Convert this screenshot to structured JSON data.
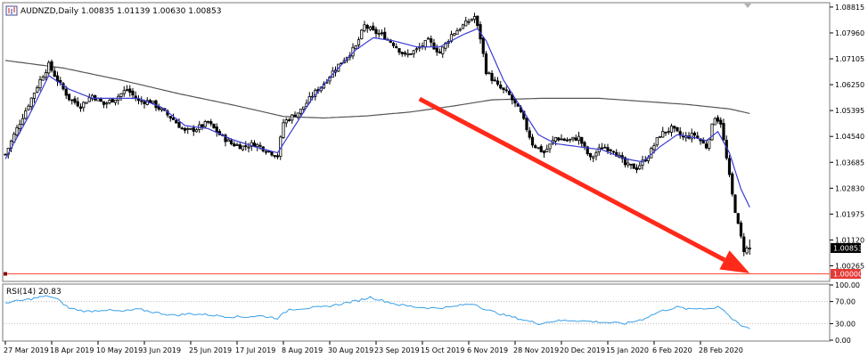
{
  "chart_title": "AUDNZD,Daily  1.00835 1.01139 1.00630 1.00853",
  "rsi_title": "RSI(14) 20.83",
  "colors": {
    "candle": "#000000",
    "ma_fast": "#3b3bd6",
    "ma_slow": "#555555",
    "arrow": "#ff2a1a",
    "hline": "#ff4a3a",
    "rsi": "#3aa0e8",
    "level_badge_bg": "#e53935",
    "price_badge_bg": "#000000"
  },
  "icons": {
    "symbol_icon": "chart-window-icon"
  },
  "chart_data": [
    {
      "type": "candlestick",
      "title": "AUDNZD,Daily  1.00835 1.01139 1.00630 1.00853",
      "symbol": "AUDNZD",
      "timeframe": "Daily",
      "last_bar": {
        "open": 1.00835,
        "high": 1.01139,
        "low": 1.0063,
        "close": 1.00853
      },
      "current_price_label": "1.00853",
      "horizontal_level": {
        "value": 1.0,
        "label": "1.00000"
      },
      "ylim": [
        0.9978,
        1.0893
      ],
      "y_ticks": [
        "1.08815",
        "1.07960",
        "1.07105",
        "1.06250",
        "1.05395",
        "1.04540",
        "1.03685",
        "1.02830",
        "1.01975",
        "1.01120",
        "1.00265"
      ],
      "x_ticks": [
        "27 Mar 2019",
        "18 Apr 2019",
        "10 May 2019",
        "3 Jun 2019",
        "25 Jun 2019",
        "17 Jul 2019",
        "8 Aug 2019",
        "30 Aug 2019",
        "23 Sep 2019",
        "15 Oct 2019",
        "6 Nov 2019",
        "28 Nov 2019",
        "20 Dec 2019",
        "15 Jan 2020",
        "6 Feb 2020",
        "28 Feb 2020"
      ],
      "x_ticks_bar_index": [
        0,
        16,
        32,
        48,
        64,
        80,
        96,
        112,
        128,
        144,
        160,
        176,
        192,
        208,
        224,
        240
      ],
      "close_series_anchors": [
        [
          0,
          1.0395
        ],
        [
          4,
          1.048
        ],
        [
          8,
          1.056
        ],
        [
          12,
          1.064
        ],
        [
          15,
          1.069
        ],
        [
          18,
          1.064
        ],
        [
          22,
          1.058
        ],
        [
          26,
          1.0555
        ],
        [
          30,
          1.059
        ],
        [
          34,
          1.056
        ],
        [
          38,
          1.058
        ],
        [
          42,
          1.061
        ],
        [
          46,
          1.057
        ],
        [
          50,
          1.057
        ],
        [
          54,
          1.054
        ],
        [
          58,
          1.051
        ],
        [
          62,
          1.047
        ],
        [
          66,
          1.048
        ],
        [
          70,
          1.05
        ],
        [
          74,
          1.046
        ],
        [
          78,
          1.043
        ],
        [
          82,
          1.042
        ],
        [
          86,
          1.043
        ],
        [
          90,
          1.041
        ],
        [
          94,
          1.039
        ],
        [
          96,
          1.05
        ],
        [
          99,
          1.052
        ],
        [
          102,
          1.054
        ],
        [
          106,
          1.059
        ],
        [
          110,
          1.063
        ],
        [
          114,
          1.068
        ],
        [
          118,
          1.072
        ],
        [
          121,
          1.075
        ],
        [
          124,
          1.082
        ],
        [
          127,
          1.08
        ],
        [
          130,
          1.079
        ],
        [
          134,
          1.076
        ],
        [
          138,
          1.072
        ],
        [
          142,
          1.074
        ],
        [
          146,
          1.077
        ],
        [
          150,
          1.073
        ],
        [
          154,
          1.079
        ],
        [
          158,
          1.082
        ],
        [
          162,
          1.085
        ],
        [
          164,
          1.078
        ],
        [
          166,
          1.067
        ],
        [
          170,
          1.062
        ],
        [
          174,
          1.059
        ],
        [
          178,
          1.053
        ],
        [
          182,
          1.043
        ],
        [
          186,
          1.04
        ],
        [
          190,
          1.045
        ],
        [
          194,
          1.044
        ],
        [
          198,
          1.045
        ],
        [
          202,
          1.038
        ],
        [
          206,
          1.042
        ],
        [
          210,
          1.041
        ],
        [
          214,
          1.036
        ],
        [
          218,
          1.035
        ],
        [
          222,
          1.039
        ],
        [
          226,
          1.046
        ],
        [
          230,
          1.048
        ],
        [
          234,
          1.045
        ],
        [
          238,
          1.046
        ],
        [
          242,
          1.042
        ],
        [
          245,
          1.052
        ],
        [
          247,
          1.05
        ],
        [
          249,
          1.038
        ],
        [
          251,
          1.026
        ],
        [
          253,
          1.016
        ],
        [
          255,
          1.008
        ],
        [
          257,
          1.0085
        ]
      ],
      "ma_fast_anchors": [
        [
          0,
          1.038
        ],
        [
          8,
          1.052
        ],
        [
          15,
          1.0655
        ],
        [
          22,
          1.061
        ],
        [
          30,
          1.058
        ],
        [
          38,
          1.058
        ],
        [
          46,
          1.058
        ],
        [
          54,
          1.055
        ],
        [
          62,
          1.049
        ],
        [
          70,
          1.048
        ],
        [
          78,
          1.0445
        ],
        [
          86,
          1.042
        ],
        [
          94,
          1.04
        ],
        [
          100,
          1.049
        ],
        [
          106,
          1.058
        ],
        [
          114,
          1.067
        ],
        [
          121,
          1.074
        ],
        [
          127,
          1.078
        ],
        [
          134,
          1.077
        ],
        [
          142,
          1.075
        ],
        [
          150,
          1.075
        ],
        [
          158,
          1.079
        ],
        [
          163,
          1.081
        ],
        [
          166,
          1.077
        ],
        [
          172,
          1.064
        ],
        [
          178,
          1.055
        ],
        [
          184,
          1.046
        ],
        [
          190,
          1.043
        ],
        [
          198,
          1.042
        ],
        [
          206,
          1.041
        ],
        [
          214,
          1.038
        ],
        [
          220,
          1.037
        ],
        [
          226,
          1.042
        ],
        [
          232,
          1.046
        ],
        [
          238,
          1.045
        ],
        [
          242,
          1.044
        ],
        [
          246,
          1.047
        ],
        [
          250,
          1.04
        ],
        [
          254,
          1.028
        ],
        [
          257,
          1.022
        ]
      ],
      "ma_slow_anchors": [
        [
          0,
          1.0705
        ],
        [
          20,
          1.068
        ],
        [
          40,
          1.064
        ],
        [
          60,
          1.0595
        ],
        [
          80,
          1.0555
        ],
        [
          96,
          1.052
        ],
        [
          110,
          1.0515
        ],
        [
          125,
          1.0522
        ],
        [
          140,
          1.0535
        ],
        [
          155,
          1.0555
        ],
        [
          168,
          1.0575
        ],
        [
          185,
          1.058
        ],
        [
          205,
          1.058
        ],
        [
          220,
          1.057
        ],
        [
          235,
          1.056
        ],
        [
          250,
          1.0545
        ],
        [
          257,
          1.053
        ]
      ],
      "arrow": {
        "from": [
          143,
          1.0578
        ],
        "to": [
          257,
          1.0002
        ]
      }
    },
    {
      "type": "line",
      "title": "RSI(14) 20.83",
      "indicator": "RSI(14)",
      "current_value": 20.83,
      "ylim": [
        0,
        100
      ],
      "y_ticks": [
        "100.00",
        "70.00",
        "30.00",
        "0.00"
      ],
      "levels": [
        70,
        30
      ],
      "rsi_anchors": [
        [
          0,
          68
        ],
        [
          6,
          72
        ],
        [
          12,
          78
        ],
        [
          15,
          80
        ],
        [
          18,
          74
        ],
        [
          22,
          58
        ],
        [
          28,
          52
        ],
        [
          34,
          55
        ],
        [
          40,
          52
        ],
        [
          46,
          56
        ],
        [
          52,
          50
        ],
        [
          58,
          45
        ],
        [
          64,
          48
        ],
        [
          70,
          46
        ],
        [
          76,
          43
        ],
        [
          82,
          42
        ],
        [
          88,
          44
        ],
        [
          94,
          40
        ],
        [
          98,
          56
        ],
        [
          104,
          58
        ],
        [
          110,
          60
        ],
        [
          116,
          66
        ],
        [
          122,
          72
        ],
        [
          126,
          78
        ],
        [
          130,
          72
        ],
        [
          136,
          64
        ],
        [
          142,
          60
        ],
        [
          148,
          58
        ],
        [
          154,
          60
        ],
        [
          158,
          64
        ],
        [
          162,
          66
        ],
        [
          166,
          55
        ],
        [
          172,
          46
        ],
        [
          178,
          38
        ],
        [
          184,
          30
        ],
        [
          190,
          35
        ],
        [
          196,
          36
        ],
        [
          202,
          34
        ],
        [
          208,
          32
        ],
        [
          214,
          30
        ],
        [
          220,
          38
        ],
        [
          226,
          52
        ],
        [
          232,
          60
        ],
        [
          236,
          56
        ],
        [
          240,
          58
        ],
        [
          244,
          57
        ],
        [
          246,
          62
        ],
        [
          248,
          55
        ],
        [
          251,
          38
        ],
        [
          254,
          26
        ],
        [
          257,
          21
        ]
      ]
    }
  ]
}
